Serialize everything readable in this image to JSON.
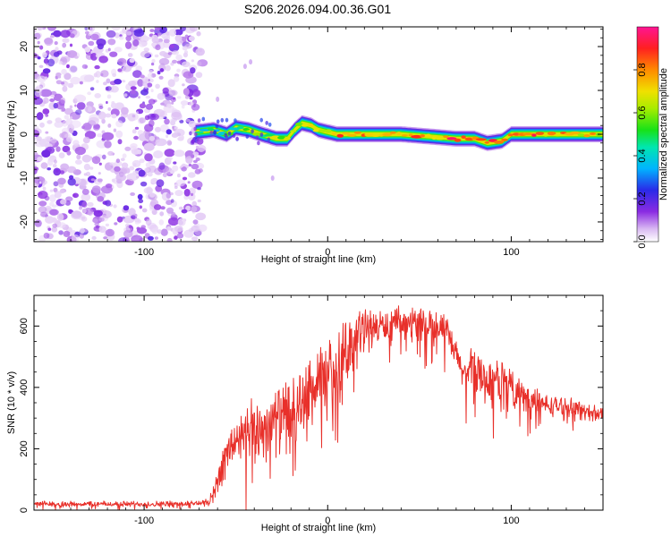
{
  "page": {
    "title": "S206.2026.094.00.36.G01"
  },
  "chart_data": [
    {
      "type": "heatmap",
      "xlabel": "Height of straight line (km)",
      "ylabel": "Frequency (Hz)",
      "xlim": [
        -160,
        150
      ],
      "ylim": [
        -24.5,
        24.5
      ],
      "xticks": [
        -100,
        0,
        100
      ],
      "xtick_labels": [
        "-100",
        "0",
        "100"
      ],
      "yticks": [
        -20,
        -10,
        0,
        10,
        20
      ],
      "ytick_labels": [
        "-20",
        "-10",
        "0",
        "10",
        "20"
      ],
      "noise_region_x": [
        -160,
        -72
      ],
      "ridge": {
        "x_start": -72,
        "x_end": 150,
        "freq_track": [
          [
            -72,
            0.5
          ],
          [
            -62,
            1.0
          ],
          [
            -55,
            0.0
          ],
          [
            -50,
            1.5
          ],
          [
            -43,
            1.0
          ],
          [
            -36,
            0.0
          ],
          [
            -28,
            -1.0
          ],
          [
            -22,
            -1.0
          ],
          [
            -18,
            1.0
          ],
          [
            -14,
            2.5
          ],
          [
            -9,
            2.0
          ],
          [
            -5,
            1.0
          ],
          [
            0,
            0.5
          ],
          [
            5,
            0.0
          ],
          [
            20,
            0.0
          ],
          [
            40,
            0.0
          ],
          [
            55,
            -0.5
          ],
          [
            70,
            -1.0
          ],
          [
            80,
            -1.0
          ],
          [
            87,
            -2.0
          ],
          [
            95,
            -1.5
          ],
          [
            100,
            0.0
          ],
          [
            120,
            0.0
          ],
          [
            150,
            0.0
          ]
        ],
        "amplitude_track": [
          [
            -72,
            0.35
          ],
          [
            -60,
            0.45
          ],
          [
            -50,
            0.5
          ],
          [
            -40,
            0.55
          ],
          [
            -30,
            0.6
          ],
          [
            -20,
            0.65
          ],
          [
            -10,
            0.7
          ],
          [
            0,
            0.75
          ],
          [
            20,
            0.85
          ],
          [
            40,
            0.75
          ],
          [
            60,
            0.8
          ],
          [
            75,
            0.9
          ],
          [
            90,
            0.85
          ],
          [
            100,
            0.7
          ],
          [
            110,
            0.85
          ],
          [
            130,
            0.75
          ],
          [
            150,
            0.7
          ]
        ]
      },
      "colorbar": {
        "label": "Normalized spectral amplitude",
        "range": [
          0,
          1
        ],
        "ticks": [
          0.0,
          0.2,
          0.4,
          0.6,
          0.8
        ],
        "tick_labels": [
          "0.0",
          "0.2",
          "0.4",
          "0.6",
          "0.8"
        ]
      }
    },
    {
      "type": "line",
      "xlabel": "Height of straight line (km)",
      "ylabel": "SNR (10 * v/v)",
      "xlim": [
        -160,
        150
      ],
      "ylim": [
        0,
        700
      ],
      "xticks": [
        -100,
        0,
        100
      ],
      "xtick_labels": [
        "-100",
        "0",
        "100"
      ],
      "yticks": [
        0,
        200,
        400,
        600
      ],
      "ytick_labels": [
        "0",
        "200",
        "400",
        "600"
      ],
      "color": "#e8302a",
      "series": [
        {
          "name": "SNR",
          "envelope": [
            [
              -160,
              20
            ],
            [
              -130,
              20
            ],
            [
              -100,
              20
            ],
            [
              -80,
              20
            ],
            [
              -65,
              25
            ],
            [
              -60,
              100
            ],
            [
              -55,
              180
            ],
            [
              -50,
              230
            ],
            [
              -45,
              240
            ],
            [
              -40,
              250
            ],
            [
              -35,
              270
            ],
            [
              -30,
              290
            ],
            [
              -25,
              300
            ],
            [
              -20,
              320
            ],
            [
              -15,
              350
            ],
            [
              -10,
              380
            ],
            [
              -5,
              400
            ],
            [
              0,
              430
            ],
            [
              5,
              470
            ],
            [
              10,
              520
            ],
            [
              15,
              560
            ],
            [
              20,
              590
            ],
            [
              30,
              600
            ],
            [
              40,
              610
            ],
            [
              50,
              610
            ],
            [
              60,
              605
            ],
            [
              65,
              580
            ],
            [
              70,
              500
            ],
            [
              75,
              440
            ],
            [
              80,
              470
            ],
            [
              85,
              430
            ],
            [
              90,
              410
            ],
            [
              95,
              440
            ],
            [
              100,
              400
            ],
            [
              110,
              360
            ],
            [
              120,
              340
            ],
            [
              130,
              340
            ],
            [
              140,
              320
            ],
            [
              150,
              315
            ]
          ],
          "noise_amp": [
            [
              -160,
              10
            ],
            [
              -65,
              12
            ],
            [
              -60,
              60
            ],
            [
              -40,
              130
            ],
            [
              -20,
              130
            ],
            [
              0,
              150
            ],
            [
              10,
              120
            ],
            [
              30,
              60
            ],
            [
              60,
              60
            ],
            [
              70,
              60
            ],
            [
              90,
              100
            ],
            [
              100,
              70
            ],
            [
              120,
              40
            ],
            [
              150,
              30
            ]
          ]
        }
      ]
    }
  ]
}
